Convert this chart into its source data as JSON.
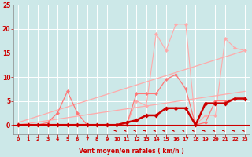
{
  "title": "",
  "xlabel": "Vent moyen/en rafales ( km/h )",
  "ylabel": "",
  "bg_color": "#cce8e8",
  "grid_color": "#ffffff",
  "xlim": [
    -0.5,
    23.5
  ],
  "ylim": [
    -2,
    25
  ],
  "xticks": [
    0,
    1,
    2,
    3,
    4,
    5,
    6,
    7,
    8,
    9,
    10,
    11,
    12,
    13,
    14,
    15,
    16,
    17,
    18,
    19,
    20,
    21,
    22,
    23
  ],
  "yticks": [
    0,
    5,
    10,
    15,
    20,
    25
  ],
  "series": [
    {
      "name": "rafales_light",
      "color": "#ffaaaa",
      "linewidth": 0.8,
      "marker": "D",
      "markersize": 2.5,
      "x": [
        0,
        1,
        2,
        3,
        4,
        5,
        6,
        7,
        8,
        9,
        10,
        11,
        12,
        13,
        14,
        15,
        16,
        17,
        18,
        19,
        20,
        21,
        22,
        23
      ],
      "y": [
        0,
        0,
        0,
        0,
        0,
        0,
        0,
        0,
        0,
        0,
        0,
        0,
        5,
        4,
        19,
        15.5,
        21,
        21,
        0,
        2,
        2,
        18,
        16,
        15.5
      ]
    },
    {
      "name": "trend_upper",
      "color": "#ffaaaa",
      "linewidth": 0.9,
      "marker": null,
      "markersize": 0,
      "x": [
        0,
        23
      ],
      "y": [
        0.5,
        15.5
      ]
    },
    {
      "name": "trend_lower",
      "color": "#ffaaaa",
      "linewidth": 0.9,
      "marker": null,
      "markersize": 0,
      "x": [
        0,
        23
      ],
      "y": [
        0,
        7
      ]
    },
    {
      "name": "vent_medium",
      "color": "#ff7777",
      "linewidth": 0.9,
      "marker": "D",
      "markersize": 2.5,
      "x": [
        0,
        1,
        2,
        3,
        4,
        5,
        6,
        7,
        8,
        9,
        10,
        11,
        12,
        13,
        14,
        15,
        16,
        17,
        18,
        19,
        20,
        21,
        22,
        23
      ],
      "y": [
        0,
        0,
        0,
        0.5,
        2.5,
        7,
        2.5,
        0,
        0,
        0,
        0,
        0,
        6.5,
        6.5,
        6.5,
        9.5,
        10.5,
        7.5,
        0,
        0.5,
        5,
        5,
        5.5,
        5.5
      ]
    },
    {
      "name": "vent_dark",
      "color": "#cc0000",
      "linewidth": 1.8,
      "marker": "D",
      "markersize": 3,
      "x": [
        0,
        1,
        2,
        3,
        4,
        5,
        6,
        7,
        8,
        9,
        10,
        11,
        12,
        13,
        14,
        15,
        16,
        17,
        18,
        19,
        20,
        21,
        22,
        23
      ],
      "y": [
        0,
        0,
        0,
        0,
        0,
        0,
        0,
        0,
        0,
        0,
        0,
        0.5,
        1,
        2,
        2,
        3.5,
        3.5,
        3.5,
        0,
        4.5,
        4.5,
        4.5,
        5.5,
        5.5
      ]
    }
  ],
  "wind_arrows": {
    "color": "#cc0000",
    "x": [
      0,
      1,
      2,
      3,
      4,
      5,
      6,
      7,
      8,
      9,
      10,
      11,
      12,
      13,
      14,
      15,
      16,
      17,
      18,
      19,
      20,
      21,
      22,
      23
    ],
    "angles_deg": [
      90,
      90,
      90,
      90,
      90,
      90,
      90,
      90,
      90,
      90,
      135,
      135,
      135,
      135,
      135,
      180,
      180,
      180,
      180,
      225,
      225,
      225,
      225,
      225
    ]
  }
}
